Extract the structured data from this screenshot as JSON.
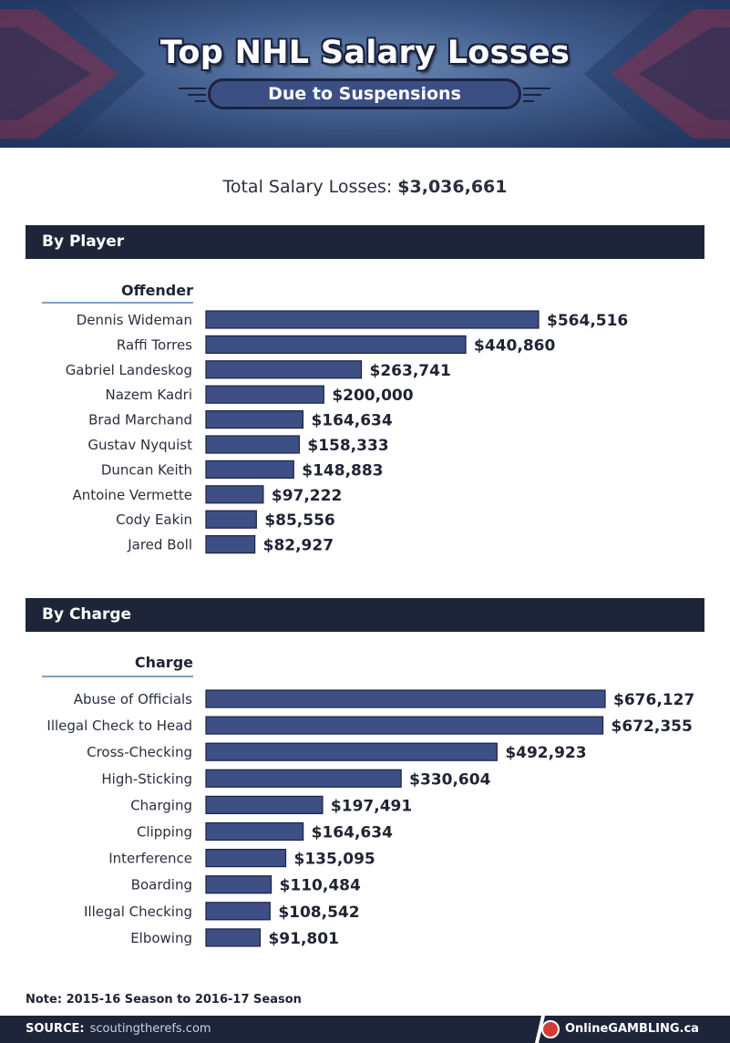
{
  "header": {
    "title": "Top NHL Salary Losses",
    "subtitle": "Due to Suspensions"
  },
  "total": {
    "label": "Total Salary Losses:",
    "amount": "$3,036,661"
  },
  "sections": {
    "player": {
      "title": "By Player",
      "column_header": "Offender"
    },
    "charge": {
      "title": "By Charge",
      "column_header": "Charge"
    }
  },
  "chart_data": [
    {
      "type": "bar",
      "orientation": "horizontal",
      "title": "By Player",
      "category_label": "Offender",
      "categories": [
        "Dennis Wideman",
        "Raffi Torres",
        "Gabriel Landeskog",
        "Nazem Kadri",
        "Brad Marchand",
        "Gustav Nyquist",
        "Duncan Keith",
        "Antoine Vermette",
        "Cody Eakin",
        "Jared Boll"
      ],
      "values": [
        564516,
        440860,
        263741,
        200000,
        164634,
        158333,
        148883,
        97222,
        85556,
        82927
      ],
      "value_labels": [
        "$564,516",
        "$440,860",
        "$263,741",
        "$200,000",
        "$164,634",
        "$158,333",
        "$148,883",
        "$97,222",
        "$85,556",
        "$82,927"
      ]
    },
    {
      "type": "bar",
      "orientation": "horizontal",
      "title": "By Charge",
      "category_label": "Charge",
      "categories": [
        "Abuse of Officials",
        "Illegal Check to Head",
        "Cross-Checking",
        "High-Sticking",
        "Charging",
        "Clipping",
        "Interference",
        "Boarding",
        "Illegal Checking",
        "Elbowing"
      ],
      "values": [
        676127,
        672355,
        492923,
        330604,
        197491,
        164634,
        135095,
        110484,
        108542,
        91801
      ],
      "value_labels": [
        "$676,127",
        "$672,355",
        "$492,923",
        "$330,604",
        "$197,491",
        "$164,634",
        "$135,095",
        "$110,484",
        "$108,542",
        "$91,801"
      ]
    }
  ],
  "note": "Note: 2015-16 Season to 2016-17 Season",
  "footer": {
    "source_label": "SOURCE:",
    "source_text": "scoutingtherefs.com",
    "brand": "OnlineGAMBLING.ca"
  },
  "colors": {
    "bar_fill": "#3d4f85",
    "section_bar": "#1e2538",
    "accent_line": "#7da2c8"
  }
}
